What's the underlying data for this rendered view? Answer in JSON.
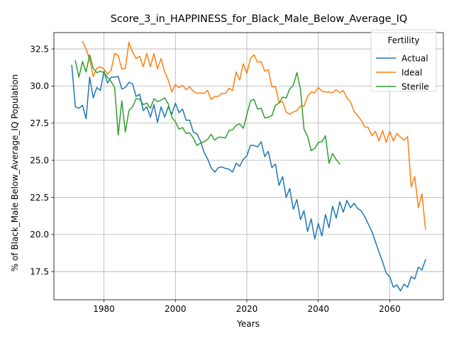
{
  "chart_data": {
    "type": "line",
    "title": "Score_3_in_HAPPINESS_for_Black_Male_Below_Average_IQ",
    "xlabel": "Years",
    "ylabel": "% of Black_Male Below_Average_IQ Population",
    "xlim": [
      1966,
      2075
    ],
    "ylim": [
      15.6,
      33.6
    ],
    "xticks": [
      1980,
      2000,
      2020,
      2040,
      2060
    ],
    "yticks": [
      17.5,
      20.0,
      22.5,
      25.0,
      27.5,
      30.0,
      32.5
    ],
    "xtick_labels": [
      "1980",
      "2000",
      "2020",
      "2040",
      "2060"
    ],
    "ytick_labels": [
      "17.5",
      "20.0",
      "22.5",
      "25.0",
      "27.5",
      "30.0",
      "32.5"
    ],
    "grid": true,
    "legend": {
      "title": "Fertility",
      "placement": "top-right"
    },
    "series": [
      {
        "name": "Actual",
        "color": "#1f77b4",
        "x_start": 1971,
        "values": [
          31.4,
          28.6,
          28.5,
          28.7,
          27.8,
          30.6,
          29.2,
          29.9,
          29.7,
          31.0,
          30.2,
          30.6,
          30.6,
          30.65,
          29.8,
          29.9,
          30.25,
          30.15,
          29.3,
          29.45,
          28.35,
          28.6,
          27.9,
          28.75,
          27.55,
          28.6,
          27.9,
          28.6,
          28.1,
          28.85,
          28.2,
          28.45,
          27.7,
          27.7,
          26.9,
          26.8,
          26.3,
          25.55,
          25.1,
          24.5,
          24.2,
          24.5,
          24.55,
          24.45,
          24.4,
          24.2,
          24.8,
          24.6,
          25.05,
          25.3,
          26.0,
          26.0,
          25.9,
          26.25,
          25.25,
          25.6,
          24.5,
          24.75,
          23.3,
          23.9,
          22.5,
          23.1,
          21.7,
          22.35,
          21.0,
          21.6,
          20.2,
          21.05,
          19.7,
          20.75,
          19.9,
          21.35,
          20.45,
          21.9,
          21.1,
          22.2,
          21.5,
          22.3,
          21.8,
          22.1,
          21.75,
          21.6,
          21.2,
          20.7,
          20.2,
          19.5,
          18.8,
          18.15,
          17.4,
          17.15,
          16.45,
          16.6,
          16.2,
          16.65,
          16.45,
          17.15,
          17.0,
          17.8,
          17.6,
          18.3
        ]
      },
      {
        "name": "Ideal",
        "color": "#ff7f0e",
        "x_start": 1974,
        "values": [
          33.0,
          32.5,
          31.8,
          30.65,
          31.2,
          31.3,
          31.15,
          30.8,
          31.05,
          32.2,
          32.05,
          31.15,
          31.2,
          32.95,
          32.3,
          31.85,
          32.0,
          31.3,
          32.2,
          31.3,
          32.2,
          31.15,
          31.85,
          30.95,
          30.4,
          29.6,
          30.1,
          29.9,
          30.05,
          29.75,
          29.95,
          29.65,
          29.5,
          29.55,
          29.5,
          29.7,
          29.1,
          29.3,
          29.3,
          29.5,
          29.5,
          29.85,
          29.7,
          30.95,
          30.4,
          31.5,
          30.85,
          31.85,
          32.1,
          31.6,
          31.65,
          31.0,
          31.1,
          29.95,
          29.95,
          28.9,
          28.95,
          28.25,
          28.1,
          28.25,
          28.35,
          28.65,
          28.65,
          29.3,
          29.6,
          29.55,
          29.9,
          29.65,
          29.6,
          29.6,
          29.55,
          29.75,
          29.55,
          29.7,
          29.2,
          28.95,
          28.3,
          28.0,
          27.7,
          27.25,
          27.2,
          26.65,
          26.95,
          26.3,
          27.0,
          26.2,
          26.95,
          26.3,
          26.8,
          26.55,
          26.35,
          26.6,
          23.2,
          23.9,
          21.8,
          22.75,
          20.35
        ]
      },
      {
        "name": "Sterile",
        "color": "#2ca02c",
        "x_start": 1972,
        "values": [
          31.7,
          30.6,
          31.65,
          30.95,
          32.1,
          31.2,
          30.9,
          31.0,
          30.9,
          30.6,
          30.3,
          29.9,
          26.7,
          29.0,
          26.9,
          28.35,
          28.6,
          29.15,
          29.1,
          28.75,
          28.85,
          28.5,
          29.15,
          28.95,
          29.05,
          29.2,
          28.8,
          27.9,
          27.6,
          27.1,
          27.2,
          26.8,
          26.85,
          26.5,
          26.0,
          26.15,
          26.25,
          26.4,
          26.75,
          26.35,
          26.55,
          26.55,
          26.5,
          27.0,
          27.05,
          27.35,
          27.45,
          27.15,
          28.05,
          29.0,
          29.1,
          28.45,
          28.5,
          27.85,
          27.9,
          28.0,
          28.7,
          28.85,
          29.25,
          29.2,
          29.8,
          30.05,
          30.9,
          29.8,
          27.1,
          26.6,
          25.65,
          25.8,
          26.2,
          26.25,
          26.65,
          24.8,
          25.45,
          25.05,
          24.75
        ]
      }
    ]
  }
}
